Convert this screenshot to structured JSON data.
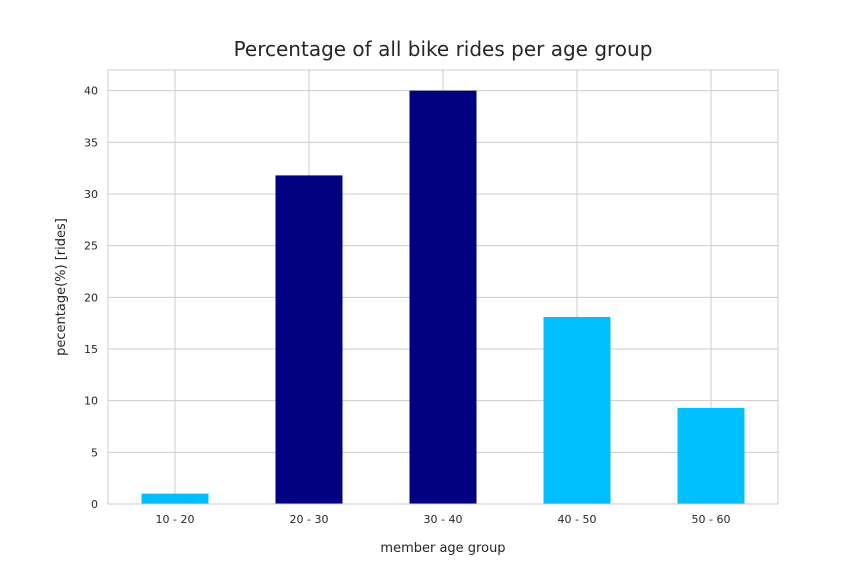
{
  "chart_data": {
    "type": "bar",
    "title": "Percentage of all bike rides per age group",
    "xlabel": "member age group",
    "ylabel": "pecentage(%) [rides]",
    "categories": [
      "10 - 20",
      "20 - 30",
      "30 - 40",
      "40 - 50",
      "50 - 60"
    ],
    "values": [
      1.0,
      31.8,
      40.0,
      18.1,
      9.3
    ],
    "bar_colors": [
      "#00bfff",
      "#000080",
      "#000080",
      "#00bfff",
      "#00bfff"
    ],
    "ylim": [
      0,
      42
    ],
    "yticks": [
      0,
      5,
      10,
      15,
      20,
      25,
      30,
      35,
      40
    ],
    "grid": true
  }
}
